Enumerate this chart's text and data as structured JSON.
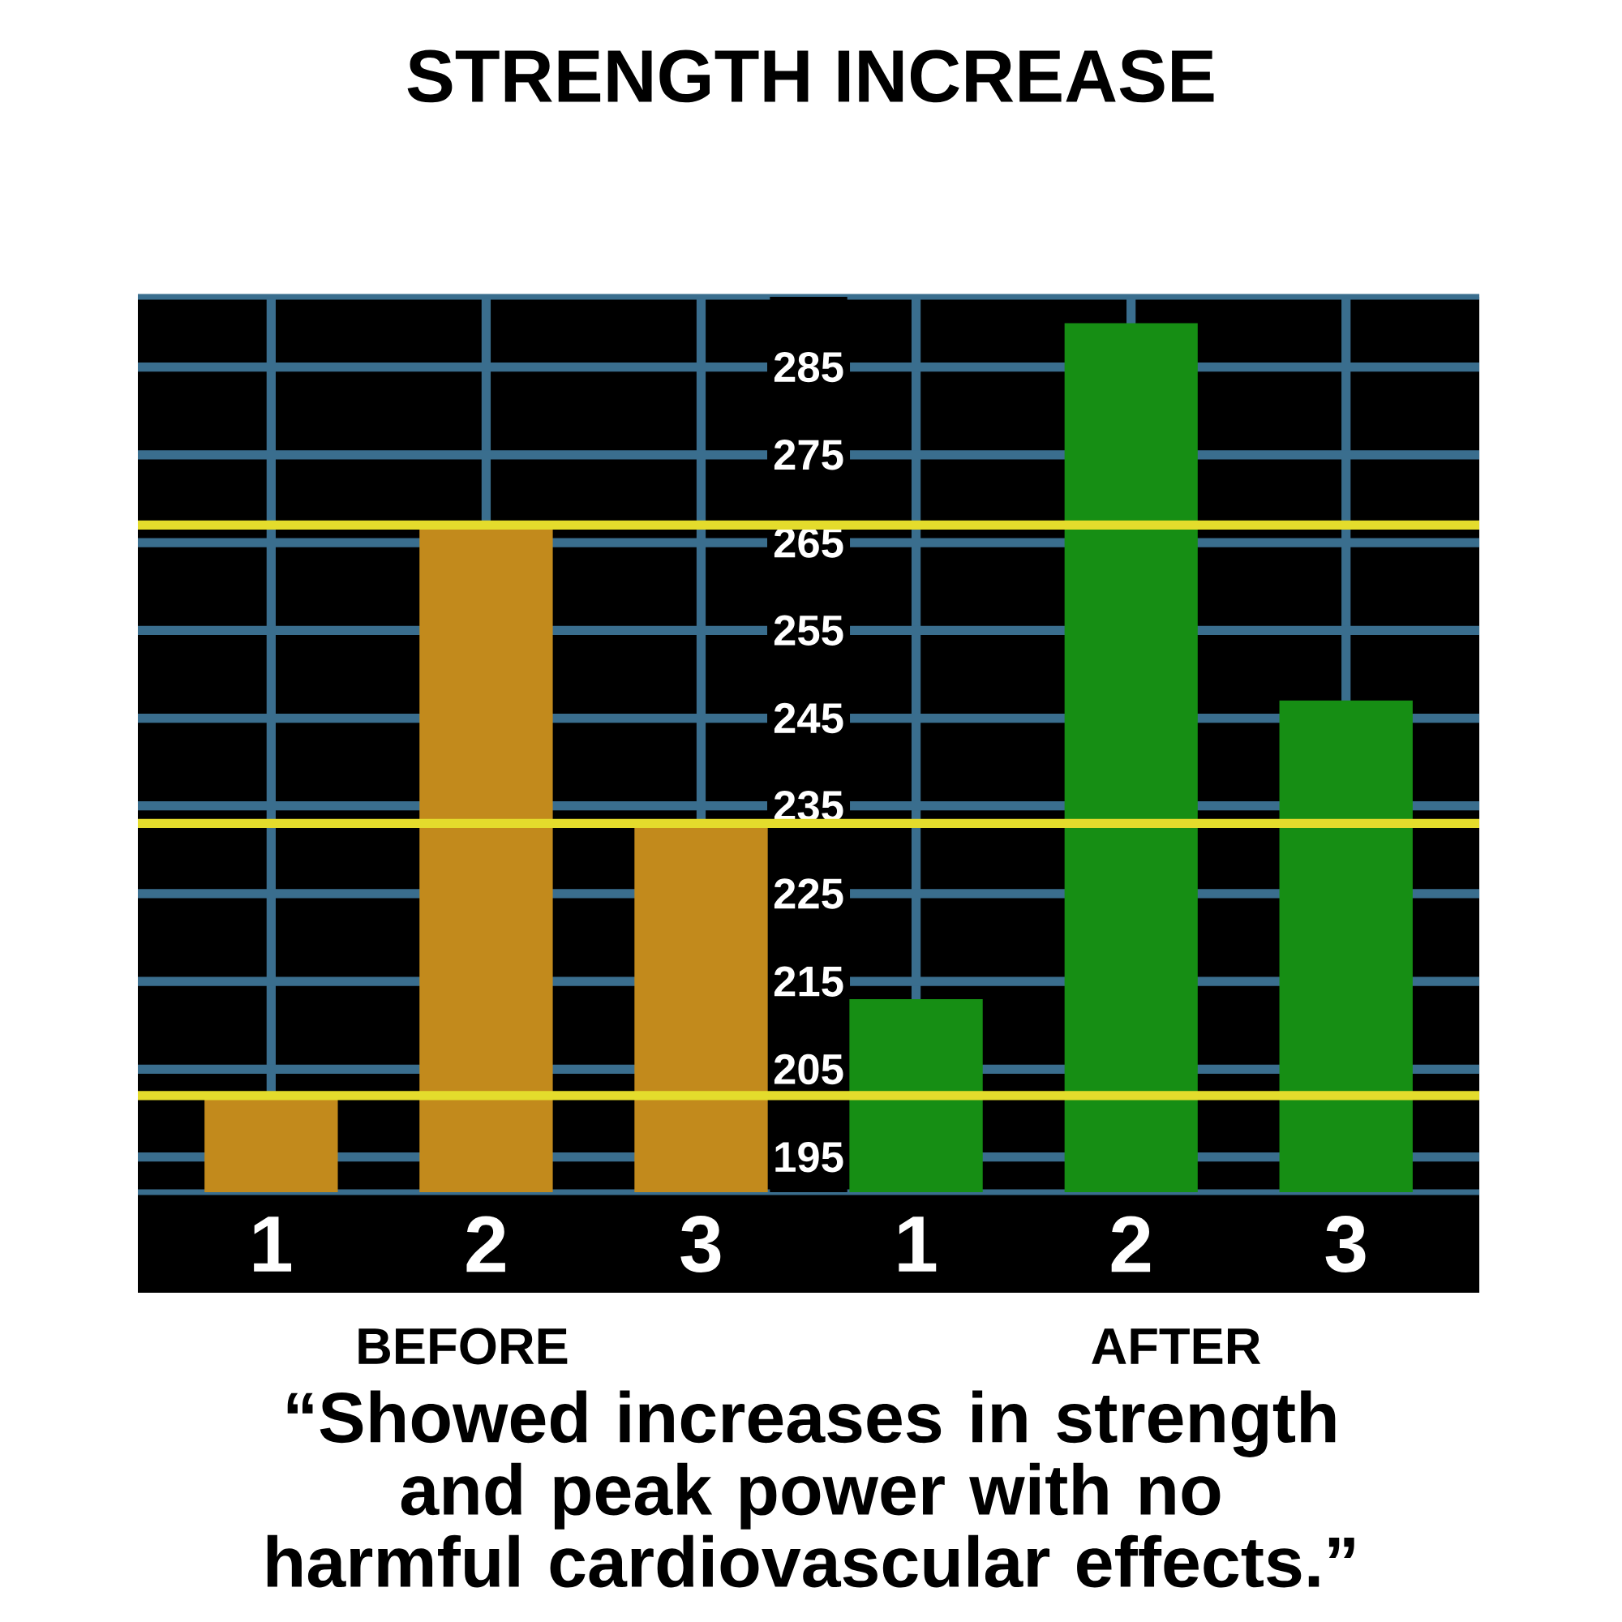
{
  "chart_data": {
    "type": "bar",
    "title": "STRENGTH INCREASE",
    "categories": [
      "1",
      "2",
      "3",
      "1",
      "2",
      "3"
    ],
    "values": [
      202,
      267,
      233,
      213,
      290,
      247
    ],
    "colors": [
      "#c28a1c",
      "#c28a1c",
      "#c28a1c",
      "#168e14",
      "#168e14",
      "#168e14"
    ],
    "ylim": [
      191,
      293
    ],
    "yticks": [
      195,
      205,
      215,
      225,
      235,
      245,
      255,
      265,
      275,
      285
    ],
    "grid": true,
    "ref_lines": [
      {
        "axis": "y",
        "value": 267,
        "color": "#e4dc2c"
      },
      {
        "axis": "y",
        "value": 233,
        "color": "#e4dc2c"
      },
      {
        "axis": "y",
        "value": 202,
        "color": "#e4dc2c"
      }
    ],
    "annotations": [
      "BEFORE",
      "AFTER",
      "“Showed increases in strength and peak power with no harmful cardiovascular effects.”"
    ]
  }
}
